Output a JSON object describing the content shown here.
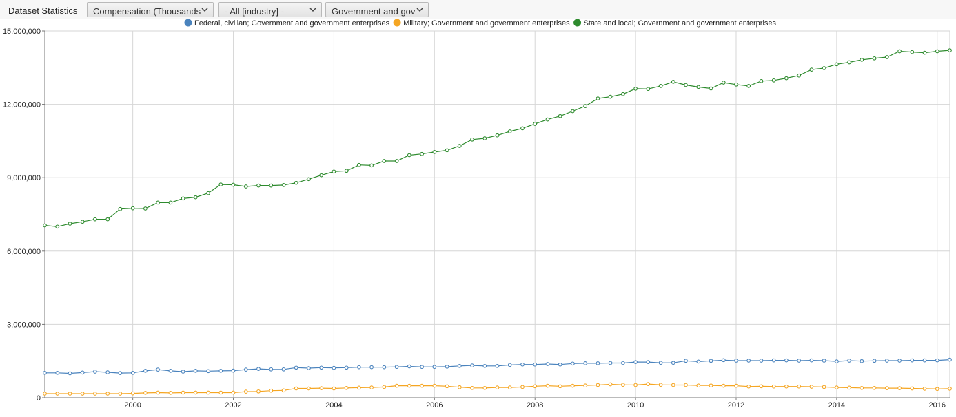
{
  "toolbar": {
    "title": "Dataset Statistics",
    "measure": "Compensation (Thousands)",
    "industry": "- All [industry] -",
    "sector": "Government and gove"
  },
  "colors": {
    "federal": "#4a83bd",
    "military": "#f5a623",
    "state": "#2e8b2e"
  },
  "chart_data": {
    "type": "line",
    "title": "",
    "xlabel": "",
    "ylabel": "",
    "x_ticks": [
      "2000",
      "2002",
      "2004",
      "2006",
      "2008",
      "2010",
      "2012",
      "2014",
      "2016"
    ],
    "y_ticks": [
      "0",
      "3,000,000",
      "6,000,000",
      "9,000,000",
      "12,000,000",
      "15,000,000"
    ],
    "ylim": [
      0,
      15000000
    ],
    "xlim": [
      "1998-04",
      "2016-04"
    ],
    "grid": true,
    "legend_position": "top",
    "x_start": "1998-04",
    "x_step_months": 3,
    "series": [
      {
        "name": "Federal, civilian; Government and government enterprises",
        "color_key": "federal",
        "values": [
          1020000,
          1020000,
          1000000,
          1030000,
          1070000,
          1040000,
          1010000,
          1020000,
          1100000,
          1150000,
          1100000,
          1070000,
          1100000,
          1090000,
          1100000,
          1110000,
          1150000,
          1180000,
          1160000,
          1160000,
          1230000,
          1210000,
          1230000,
          1220000,
          1230000,
          1250000,
          1250000,
          1250000,
          1260000,
          1280000,
          1260000,
          1260000,
          1270000,
          1300000,
          1320000,
          1300000,
          1300000,
          1340000,
          1360000,
          1360000,
          1380000,
          1360000,
          1400000,
          1410000,
          1410000,
          1420000,
          1420000,
          1460000,
          1460000,
          1430000,
          1430000,
          1510000,
          1480000,
          1510000,
          1540000,
          1520000,
          1520000,
          1520000,
          1530000,
          1530000,
          1520000,
          1530000,
          1520000,
          1490000,
          1520000,
          1500000,
          1510000,
          1520000,
          1520000,
          1530000,
          1530000,
          1530000,
          1560000,
          1580000,
          1580000,
          1610000,
          1640000
        ]
      },
      {
        "name": "Military; Government and government enterprises",
        "color_key": "military",
        "values": [
          170000,
          170000,
          170000,
          170000,
          170000,
          170000,
          170000,
          180000,
          200000,
          210000,
          200000,
          210000,
          210000,
          210000,
          210000,
          210000,
          250000,
          260000,
          290000,
          300000,
          380000,
          380000,
          390000,
          380000,
          400000,
          410000,
          420000,
          440000,
          490000,
          490000,
          490000,
          490000,
          470000,
          430000,
          400000,
          400000,
          420000,
          420000,
          440000,
          470000,
          490000,
          470000,
          490000,
          500000,
          520000,
          550000,
          530000,
          520000,
          560000,
          530000,
          520000,
          520000,
          500000,
          500000,
          490000,
          490000,
          460000,
          470000,
          460000,
          460000,
          460000,
          450000,
          440000,
          420000,
          410000,
          400000,
          400000,
          390000,
          390000,
          380000,
          370000,
          360000,
          370000,
          370000,
          370000,
          380000,
          370000
        ]
      },
      {
        "name": "State and local; Government and government enterprises",
        "color_key": "state",
        "values": [
          7050000,
          7000000,
          7120000,
          7200000,
          7300000,
          7300000,
          7720000,
          7750000,
          7740000,
          7980000,
          7980000,
          8150000,
          8200000,
          8370000,
          8720000,
          8710000,
          8640000,
          8680000,
          8680000,
          8700000,
          8790000,
          8940000,
          9100000,
          9250000,
          9280000,
          9520000,
          9500000,
          9680000,
          9680000,
          9920000,
          9970000,
          10050000,
          10120000,
          10300000,
          10560000,
          10610000,
          10730000,
          10890000,
          11020000,
          11200000,
          11380000,
          11520000,
          11720000,
          11930000,
          12240000,
          12310000,
          12420000,
          12640000,
          12630000,
          12750000,
          12920000,
          12790000,
          12710000,
          12650000,
          12890000,
          12810000,
          12750000,
          12950000,
          12980000,
          13070000,
          13180000,
          13420000,
          13480000,
          13640000,
          13720000,
          13820000,
          13880000,
          13930000,
          14170000,
          14140000,
          14110000,
          14170000,
          14210000,
          14300000,
          14500000,
          14640000,
          14800000
        ]
      }
    ]
  }
}
